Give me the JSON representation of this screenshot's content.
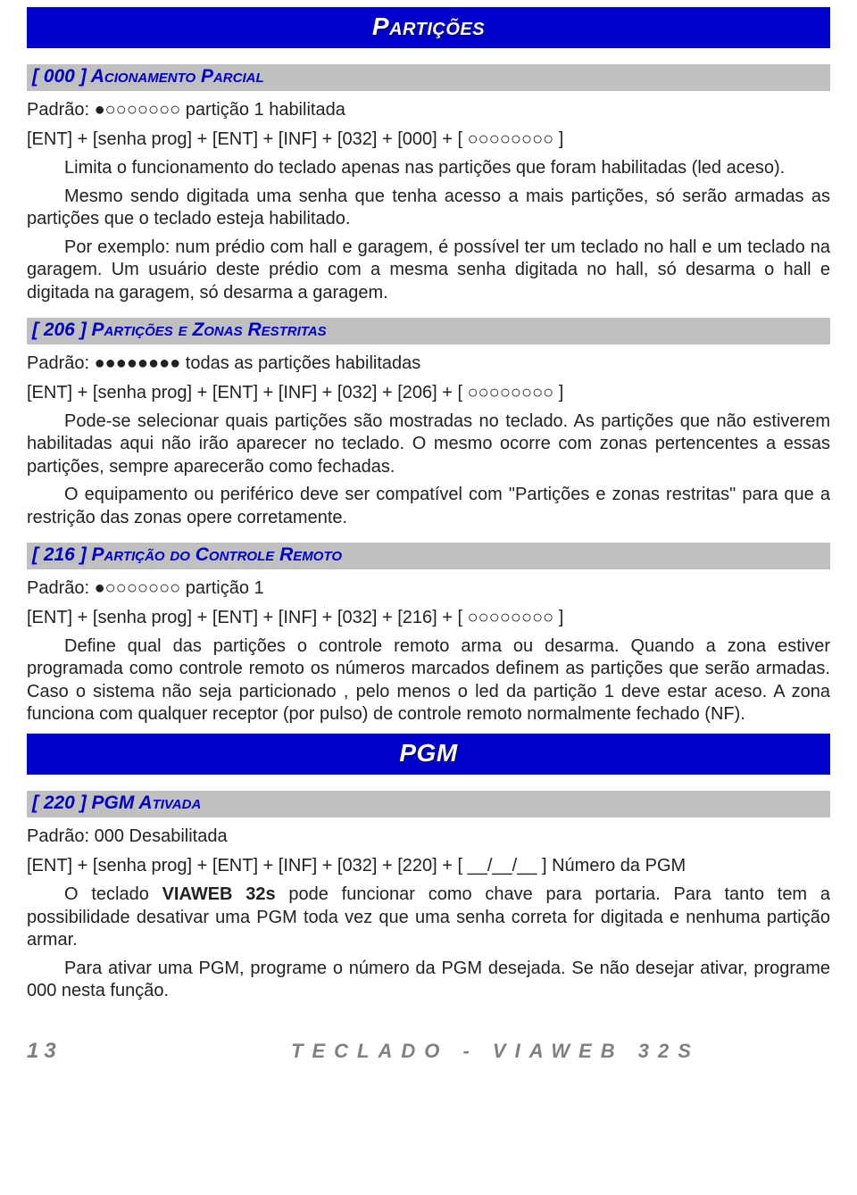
{
  "colors": {
    "title_bg": "#0000cc",
    "title_fg": "#ffffff",
    "sub_bg": "#c0c0c0",
    "sub_fg": "#0000cc",
    "body_fg": "#222222",
    "footer_fg": "#808080",
    "page_bg": "#ffffff"
  },
  "typography": {
    "family": "Arial",
    "title_size_pt": 21,
    "sub_size_pt": 16,
    "body_size_pt": 15
  },
  "title1": "Partições",
  "s000": {
    "heading": "[ 000 ] Acionamento Parcial",
    "padrao": "Padrão: ●○○○○○○○ partição 1 habilitada",
    "seq": "[ENT] + [senha prog] + [ENT] + [INF] + [032] + [000] + [ ○○○○○○○○ ]",
    "p1": "Limita o funcionamento do teclado apenas nas partições que foram habilitadas (led aceso).",
    "p2": "Mesmo sendo digitada uma senha que tenha acesso a mais partições, só serão armadas as partições que o teclado esteja habilitado.",
    "p3": "Por exemplo: num prédio com hall e garagem, é possível ter um teclado no hall e um teclado na garagem. Um usuário deste prédio com a mesma senha digitada no hall, só desarma o hall e digitada na garagem, só desarma a garagem."
  },
  "s206": {
    "heading": "[ 206 ] Partições e Zonas Restritas",
    "padrao": "Padrão: ●●●●●●●● todas as partições habilitadas",
    "seq": "[ENT] + [senha prog] + [ENT] + [INF] + [032] + [206] + [ ○○○○○○○○ ]",
    "p1": "Pode-se selecionar quais partições são mostradas no teclado. As partições que não estiverem habilitadas aqui não irão aparecer no teclado. O mesmo ocorre com zonas pertencentes a essas partições, sempre aparecerão como fechadas.",
    "p2": "O equipamento ou periférico deve ser compatível com \"Partições e zonas restritas\" para que a restrição das zonas opere corretamente."
  },
  "s216": {
    "heading": "[ 216 ] Partição do Controle Remoto",
    "padrao": "Padrão: ●○○○○○○○ partição 1",
    "seq": "[ENT] + [senha prog] + [ENT] + [INF] + [032] + [216] + [ ○○○○○○○○ ]",
    "p1": "Define qual das partições o controle remoto arma ou desarma. Quando a zona estiver programada como controle remoto os números marcados definem as partições que serão armadas. Caso o sistema não seja particionado , pelo menos o led da partição 1 deve estar aceso. A zona funciona com qualquer receptor (por pulso) de controle remoto normalmente fechado (NF)."
  },
  "title2": "PGM",
  "s220": {
    "heading": "[ 220 ] PGM Ativada",
    "padrao": "Padrão: 000 Desabilitada",
    "seq": "[ENT] + [senha prog] + [ENT] + [INF] + [032] + [220] + [ __/__/__ ] Número da PGM",
    "p1a": "O teclado ",
    "p1b": "VIAWEB 32s",
    "p1c": " pode funcionar como chave para portaria. Para tanto tem a possibilidade desativar uma PGM toda vez que uma senha correta for digitada e nenhuma partição armar.",
    "p2": "Para ativar uma PGM, programe o número da PGM desejada. Se não desejar ativar, programe 000 nesta função."
  },
  "footer": {
    "page": "13",
    "label": "TECLADO - VIAWEB 32S"
  }
}
